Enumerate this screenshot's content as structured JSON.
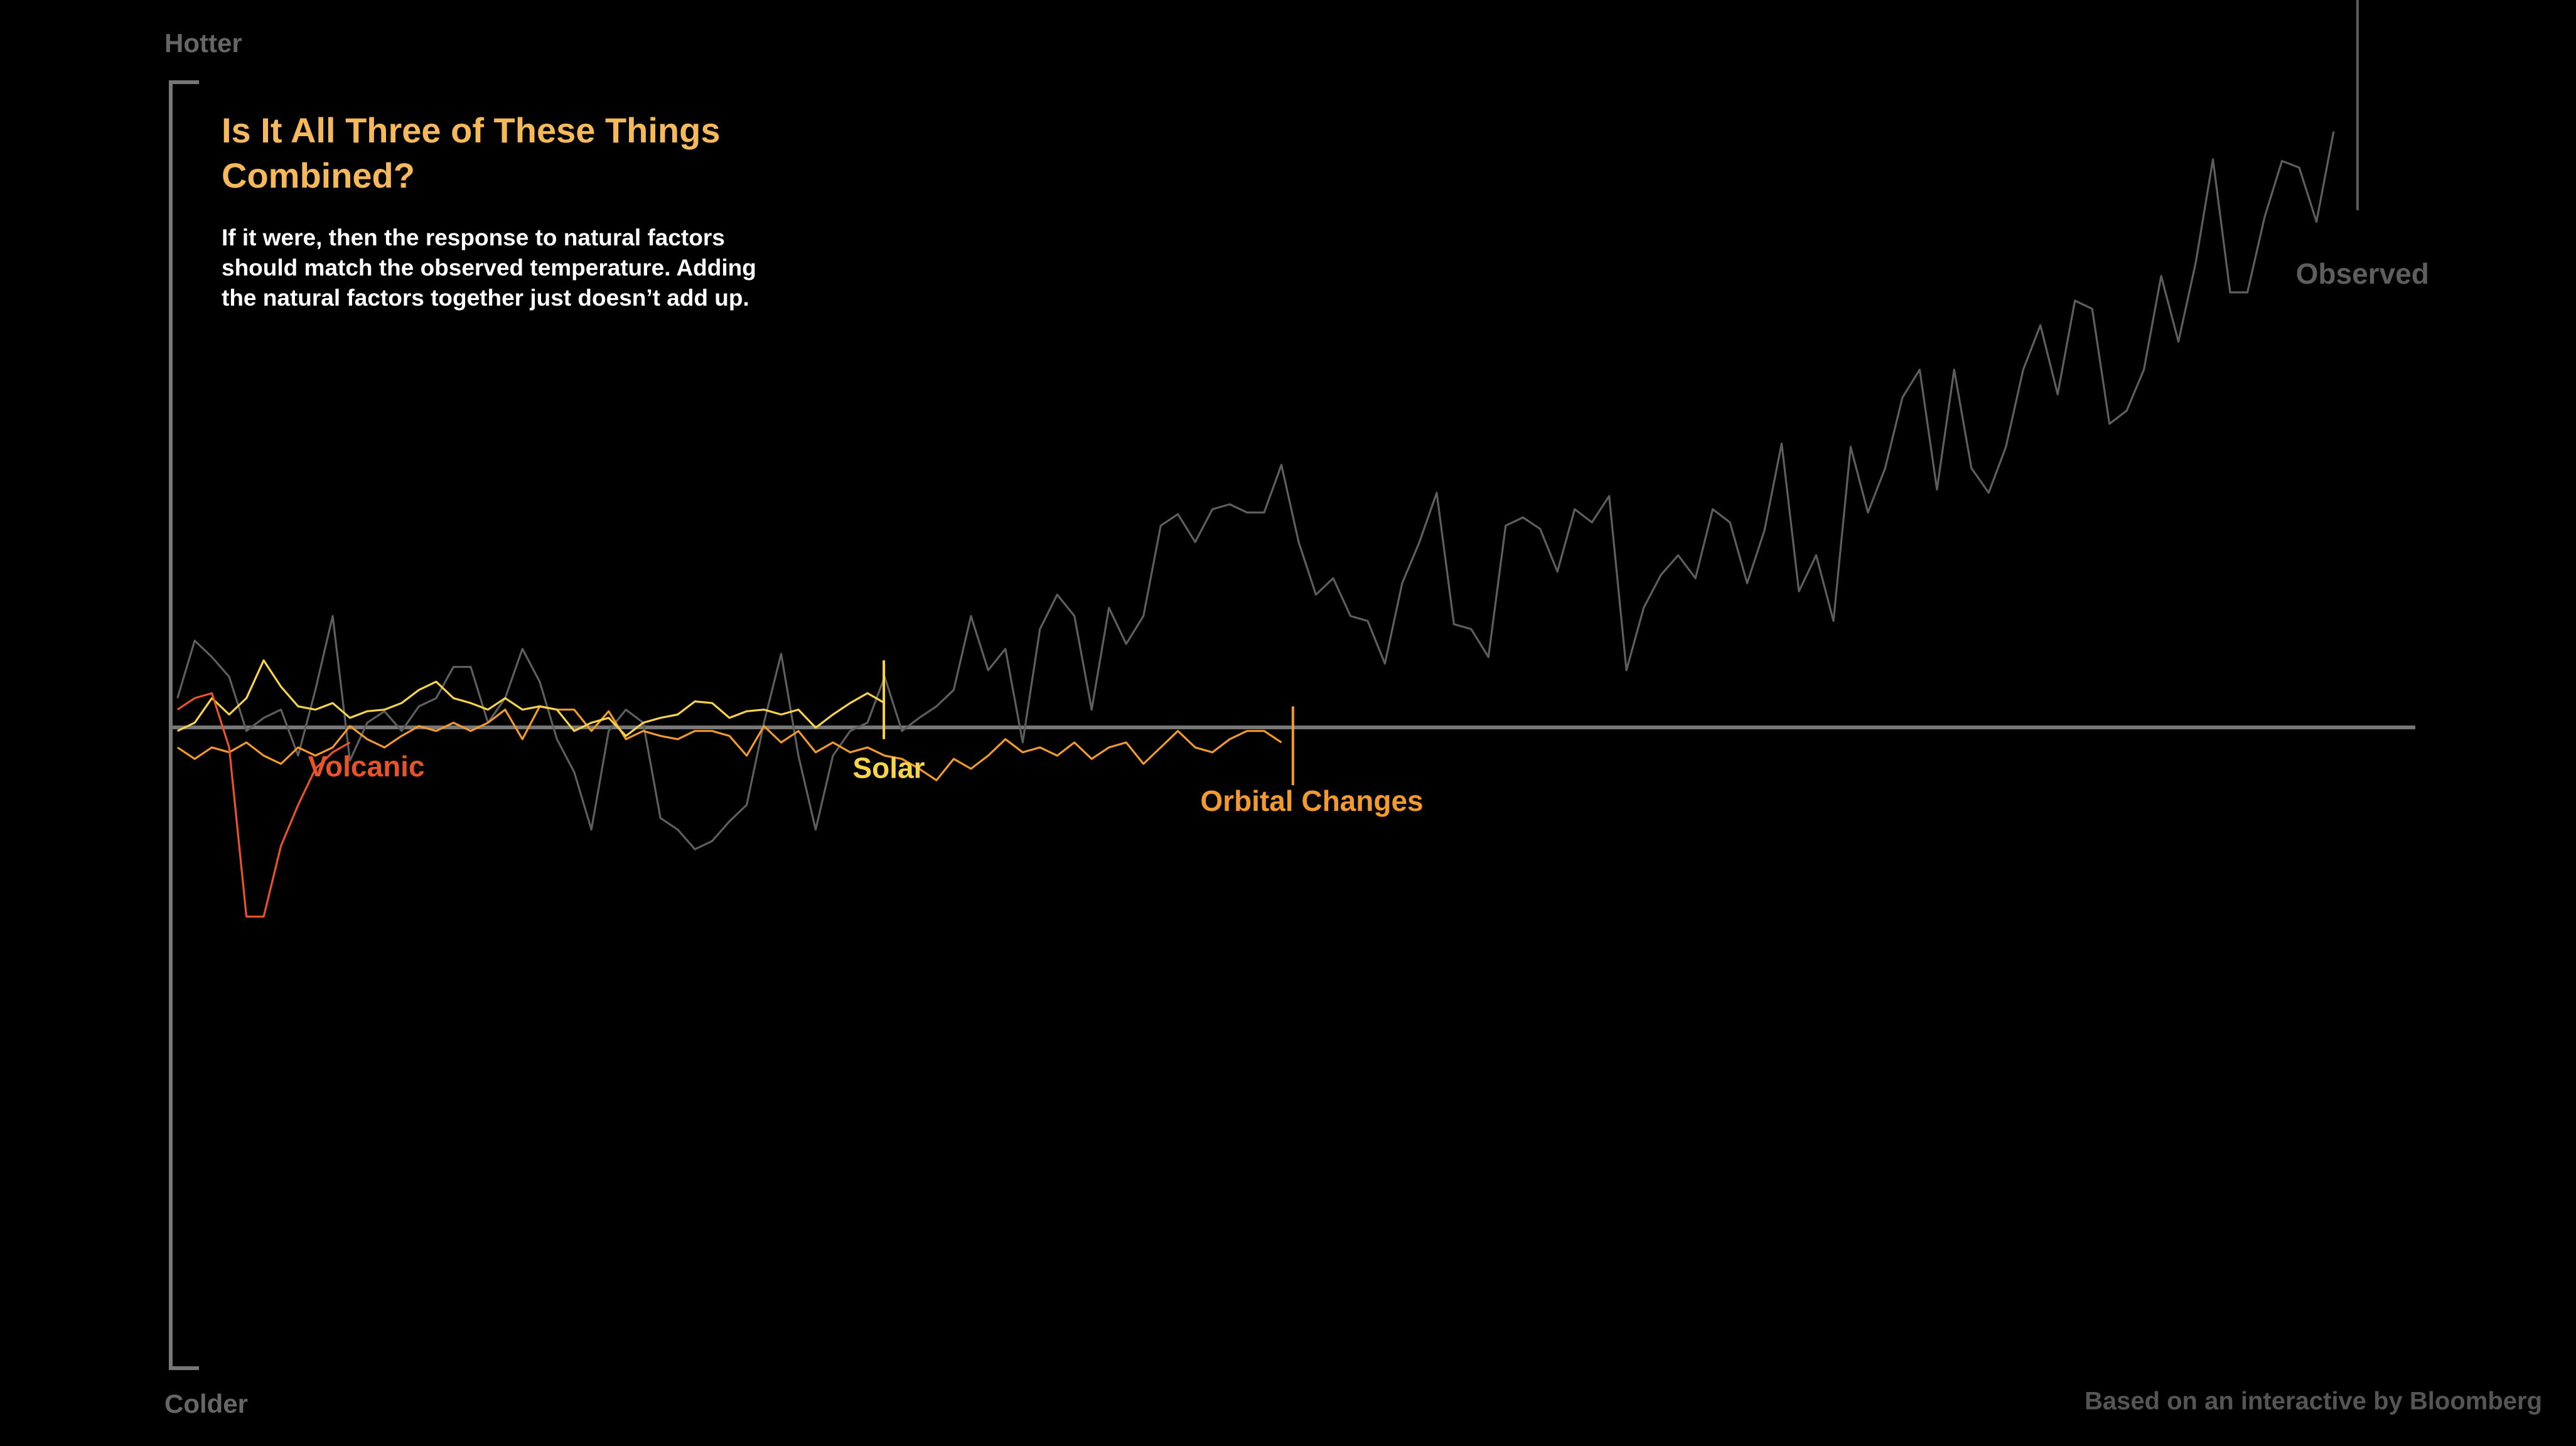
{
  "chart_data": {
    "type": "line",
    "title": "Is It All Three of These Things Combined?",
    "subtitle": "If it were, then the response to natural factors should match the observed temperature. Adding the natural factors together just doesn’t add up.",
    "y_top_label": "Hotter",
    "y_bottom_label": "Colder",
    "source": "Based on an interactive by Bloomberg",
    "ylim": [
      -3.9,
      3.93
    ],
    "series": [
      {
        "name": "Observed",
        "color": "#5e5e5e",
        "values": [
          0.18,
          0.53,
          0.43,
          0.31,
          -0.02,
          0.06,
          0.11,
          -0.17,
          0.23,
          0.68,
          -0.2,
          0.03,
          0.1,
          -0.02,
          0.13,
          0.18,
          0.37,
          0.37,
          0.03,
          0.18,
          0.48,
          0.28,
          -0.07,
          -0.27,
          -0.62,
          -0.02,
          0.11,
          0.03,
          -0.55,
          -0.62,
          -0.74,
          -0.69,
          -0.57,
          -0.47,
          0.03,
          0.45,
          -0.17,
          -0.62,
          -0.17,
          -0.02,
          0.03,
          0.31,
          -0.02,
          0.06,
          0.13,
          0.23,
          0.68,
          0.35,
          0.48,
          -0.09,
          0.6,
          0.81,
          0.68,
          0.11,
          0.73,
          0.51,
          0.68,
          1.23,
          1.3,
          1.13,
          1.33,
          1.36,
          1.31,
          1.31,
          1.6,
          1.13,
          0.81,
          0.91,
          0.68,
          0.65,
          0.39,
          0.88,
          1.13,
          1.43,
          0.63,
          0.6,
          0.43,
          1.23,
          1.28,
          1.21,
          0.95,
          1.33,
          1.25,
          1.41,
          0.35,
          0.73,
          0.93,
          1.05,
          0.91,
          1.33,
          1.25,
          0.88,
          1.2,
          1.73,
          0.83,
          1.05,
          0.65,
          1.71,
          1.31,
          1.58,
          2.01,
          2.18,
          1.45,
          2.18,
          1.58,
          1.43,
          1.71,
          2.18,
          2.45,
          2.03,
          2.6,
          2.55,
          1.85,
          1.93,
          2.18,
          2.75,
          2.35,
          2.83,
          3.46,
          2.65,
          2.65,
          3.11,
          3.45,
          3.41,
          3.08,
          3.63
        ]
      },
      {
        "name": "Orbital Changes",
        "color": "#f29a2e",
        "values": [
          -0.12,
          -0.19,
          -0.12,
          -0.15,
          -0.09,
          -0.17,
          -0.22,
          -0.12,
          -0.17,
          -0.12,
          0.01,
          -0.07,
          -0.12,
          -0.05,
          0.01,
          -0.02,
          0.03,
          -0.02,
          0.03,
          0.11,
          -0.07,
          0.13,
          0.11,
          0.11,
          -0.02,
          0.1,
          -0.07,
          -0.02,
          -0.05,
          -0.07,
          -0.02,
          -0.02,
          -0.05,
          -0.17,
          0.01,
          -0.09,
          -0.02,
          -0.15,
          -0.09,
          -0.15,
          -0.12,
          -0.17,
          -0.19,
          -0.25,
          -0.32,
          -0.19,
          -0.25,
          -0.17,
          -0.07,
          -0.15,
          -0.12,
          -0.17,
          -0.09,
          -0.19,
          -0.12,
          -0.09,
          -0.22,
          -0.12,
          -0.02,
          -0.12,
          -0.15,
          -0.07,
          -0.02,
          -0.02,
          -0.09
        ]
      },
      {
        "name": "Solar",
        "color": "#f7d44c",
        "values": [
          -0.02,
          0.03,
          0.18,
          0.08,
          0.18,
          0.41,
          0.25,
          0.13,
          0.11,
          0.15,
          0.06,
          0.1,
          0.11,
          0.15,
          0.23,
          0.28,
          0.18,
          0.15,
          0.11,
          0.18,
          0.11,
          0.13,
          0.11,
          -0.02,
          0.03,
          0.06,
          -0.05,
          0.03,
          0.06,
          0.08,
          0.16,
          0.15,
          0.06,
          0.1,
          0.11,
          0.08,
          0.11,
          0,
          0.08,
          0.15,
          0.21,
          0.15
        ]
      },
      {
        "name": "Volcanic",
        "color": "#e8542a",
        "values": [
          0.11,
          0.18,
          0.21,
          -0.12,
          -1.15,
          -1.15,
          -0.72,
          -0.47,
          -0.25,
          -0.15,
          -0.09
        ]
      }
    ]
  }
}
